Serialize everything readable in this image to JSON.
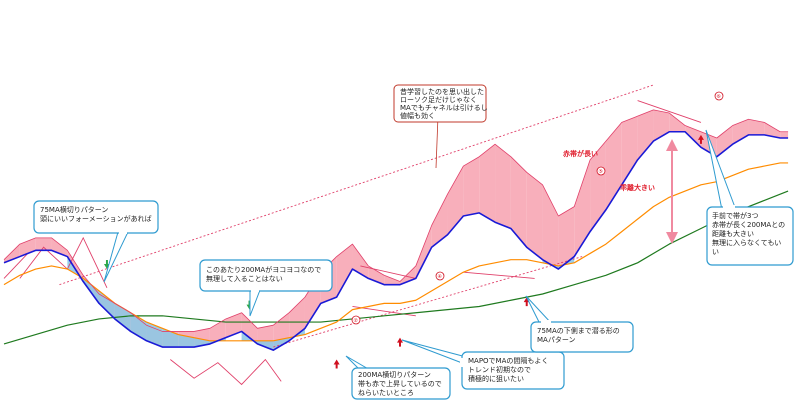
{
  "chart_data": {
    "type": "line",
    "title": "",
    "xlabel": "",
    "ylabel": "",
    "grid": false,
    "legend": "none",
    "xlim": [
      0,
      100
    ],
    "ylim": [
      0,
      100
    ],
    "colors": {
      "price": "#1a1ad6",
      "ma75": "#ff8c00",
      "ma200": "#1f7a1f",
      "bull_cloud": "#f7a6b4",
      "bear_cloud": "#8fc8e6",
      "trend_lines": "#e0406a",
      "callout_border": "#2f9bd0",
      "callout_border_alt": "#c0392b"
    },
    "series": [
      {
        "key": "upper",
        "x": [
          0,
          2,
          4,
          6,
          8,
          10,
          12,
          14,
          16,
          18,
          20,
          22,
          24,
          26,
          28,
          30,
          32,
          34,
          36,
          38,
          40,
          42,
          44,
          46,
          48,
          50,
          52,
          54,
          56,
          58,
          60,
          62,
          64,
          66,
          68,
          70,
          72,
          74,
          76,
          78,
          80,
          82,
          84,
          86,
          88,
          90,
          92,
          94,
          96,
          98,
          99
        ],
        "values": [
          36,
          41,
          43,
          43,
          39,
          31,
          25,
          22,
          19,
          15,
          13,
          13,
          13,
          14,
          17,
          19,
          14,
          15,
          19,
          24,
          32,
          37,
          41,
          34,
          31,
          29,
          34,
          47,
          57,
          66,
          69,
          73,
          69,
          64,
          60,
          50,
          53,
          68,
          74,
          80,
          82,
          84,
          83,
          79,
          77,
          75,
          79,
          81,
          80,
          77,
          77
        ]
      },
      {
        "key": "price",
        "x": [
          0,
          2,
          4,
          6,
          8,
          10,
          12,
          14,
          16,
          18,
          20,
          22,
          24,
          26,
          28,
          30,
          32,
          34,
          36,
          38,
          40,
          42,
          44,
          46,
          48,
          50,
          52,
          54,
          56,
          58,
          60,
          62,
          64,
          66,
          68,
          70,
          72,
          74,
          76,
          78,
          80,
          82,
          84,
          86,
          88,
          90,
          92,
          94,
          96,
          98,
          99
        ],
        "values": [
          35,
          37,
          39,
          39,
          37,
          29,
          22,
          17,
          13,
          10,
          8,
          8,
          8,
          9,
          11,
          13,
          9,
          7,
          10,
          14,
          22,
          24,
          33,
          30,
          28,
          28,
          30,
          40,
          44,
          50,
          51,
          48,
          46,
          40,
          36,
          33,
          37,
          45,
          52,
          60,
          68,
          74,
          77,
          77,
          72,
          69,
          73,
          76,
          76,
          75,
          75
        ]
      },
      {
        "key": "ma75",
        "x": [
          0,
          2,
          4,
          6,
          8,
          10,
          12,
          14,
          16,
          18,
          20,
          22,
          24,
          26,
          28,
          30,
          32,
          34,
          36,
          38,
          40,
          42,
          44,
          46,
          48,
          50,
          52,
          54,
          56,
          58,
          60,
          62,
          64,
          66,
          68,
          70,
          72,
          74,
          76,
          78,
          80,
          82,
          84,
          86,
          88,
          90,
          92,
          94,
          96,
          98,
          99
        ],
        "values": [
          28,
          31,
          33,
          34,
          33,
          30,
          26,
          22,
          19,
          16,
          14,
          12,
          11,
          10,
          10,
          10,
          10,
          10,
          11,
          12,
          14,
          16,
          20,
          21,
          22,
          22,
          23,
          26,
          29,
          32,
          34,
          35,
          36,
          36,
          35,
          34,
          35,
          38,
          41,
          45,
          49,
          53,
          56,
          58,
          60,
          61,
          63,
          65,
          66,
          67,
          67
        ]
      },
      {
        "key": "ma200",
        "x": [
          0,
          4,
          8,
          12,
          16,
          20,
          24,
          28,
          32,
          36,
          40,
          44,
          48,
          52,
          56,
          60,
          64,
          68,
          72,
          76,
          80,
          84,
          88,
          92,
          96,
          99
        ],
        "values": [
          9,
          12,
          15,
          17,
          18,
          18,
          17,
          16,
          16,
          16,
          16,
          17,
          18,
          19,
          20,
          21,
          23,
          25,
          28,
          31,
          35,
          41,
          46,
          51,
          55,
          58
        ]
      }
    ],
    "annotations": {
      "top_note": [
        "昔学習したのを思い出した",
        "ローソク足だけじゃなく",
        "MAでもチャネルは引けるし",
        "値幅も効く"
      ],
      "left_note": [
        "75MA横切りパターン",
        "頭にいいフォーメーションがあれば"
      ],
      "mid_note": [
        "このあたり200MAがヨコヨコなので",
        "無理して入ることはない"
      ],
      "bottom_note": [
        "200MA横切りパターン",
        "帯も赤で上昇しているので",
        "ねらいたいところ"
      ],
      "trend_note": [
        "MAPOでMAの間隔もよく",
        "トレンド初期なので",
        "積極的に狙いたい"
      ],
      "under_note": [
        "75MAの下側まで潜る形の",
        "MAパターン"
      ],
      "right_note": [
        "手前で帯が3つ",
        "赤帯が長く200MAとの",
        "距離も大きい",
        "無理に入らなくてもい",
        "い"
      ],
      "red_band_label": "赤帯が長い",
      "red_gap_label": "乖離大きい",
      "badges": [
        "⑥",
        "⑤",
        "④",
        "②",
        "①"
      ]
    }
  }
}
